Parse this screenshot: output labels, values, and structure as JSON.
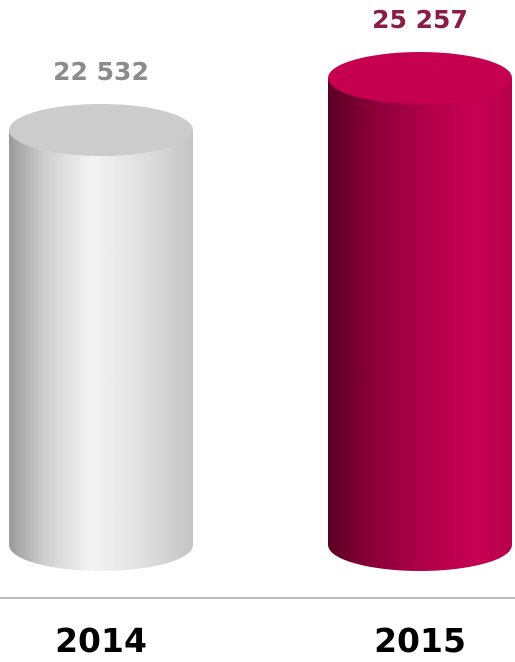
{
  "chart_data": {
    "type": "bar",
    "style": "3d-cylinder",
    "categories": [
      "2014",
      "2015"
    ],
    "values": [
      22532,
      25257
    ],
    "value_labels": [
      "22 532",
      "25 257"
    ],
    "bar_colors": [
      "#d4d4d4",
      "#b00048"
    ],
    "label_colors": [
      "#8c8c8c",
      "#8a1d44"
    ],
    "title": "",
    "xlabel": "",
    "ylabel": "",
    "grid": false,
    "legend": "none"
  }
}
